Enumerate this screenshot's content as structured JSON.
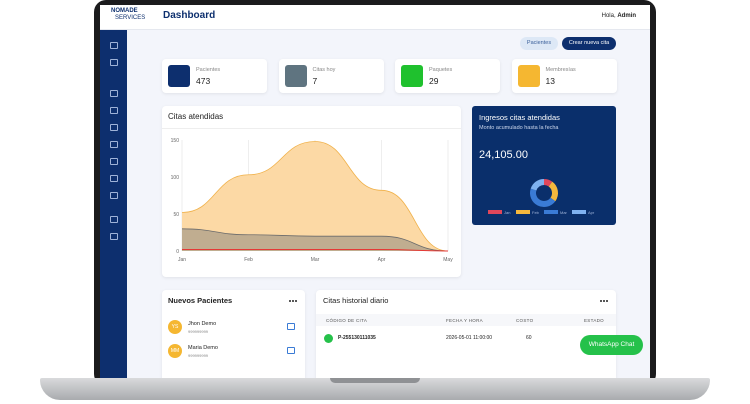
{
  "header": {
    "logo_top": "NOMADE",
    "logo_bottom": "SERVICES",
    "title": "Dashboard",
    "greeting": "Hola,",
    "user": "Admin"
  },
  "buttons": [
    "Pacientes",
    "Crear nueva cita"
  ],
  "stats": [
    {
      "label": "Pacientes",
      "value": 473,
      "color": "#0d2f6e"
    },
    {
      "label": "Citas hoy",
      "value": 7,
      "color": "#5f7480"
    },
    {
      "label": "Paquetes",
      "value": 29,
      "color": "#1fc12e"
    },
    {
      "label": "Membresías",
      "value": 13,
      "color": "#f5b731"
    }
  ],
  "citas_chart": {
    "title": "Citas atendidas",
    "categories": [
      "Jan",
      "Feb",
      "Mar",
      "Apr",
      "May"
    ],
    "ylim": [
      0,
      150
    ],
    "yticks": [
      0,
      50,
      100,
      150
    ],
    "series": [
      {
        "color": "#f0b14a",
        "values": [
          52,
          103,
          148,
          82,
          0
        ]
      },
      {
        "color": "#6b6b6b",
        "values": [
          30,
          22,
          20,
          20,
          0
        ]
      },
      {
        "color": "#e53935",
        "values": [
          2,
          2,
          2,
          2,
          0
        ]
      }
    ]
  },
  "revenue": {
    "title": "Ingresos citas atendidas",
    "subtitle": "Monto acumulado hasta la fecha",
    "amount": "24,105.00",
    "legend": [
      {
        "label": "Jan",
        "color": "#e0475b",
        "value": 10
      },
      {
        "label": "Feb",
        "color": "#f5b83d",
        "value": 25
      },
      {
        "label": "Mar",
        "color": "#3a7bd5",
        "value": 45
      },
      {
        "label": "Apr",
        "color": "#7fb2f0",
        "value": 20
      }
    ]
  },
  "patients": {
    "title": "Nuevos Pacientes",
    "items": [
      {
        "initials": "YS",
        "name": "Jhon Demo",
        "phone": "999999999"
      },
      {
        "initials": "MM",
        "name": "Maria Demo",
        "phone": "999999999"
      }
    ]
  },
  "history": {
    "title": "Citas historial diario",
    "columns": [
      "CÓDIGO DE CITA",
      "FECHA Y HORA",
      "COSTO",
      "ESTADO"
    ],
    "rows": [
      [
        "P-255130111035",
        "2026-05-01 11:00:00",
        60
      ]
    ]
  },
  "whatsapp": "WhatsApp Chat"
}
